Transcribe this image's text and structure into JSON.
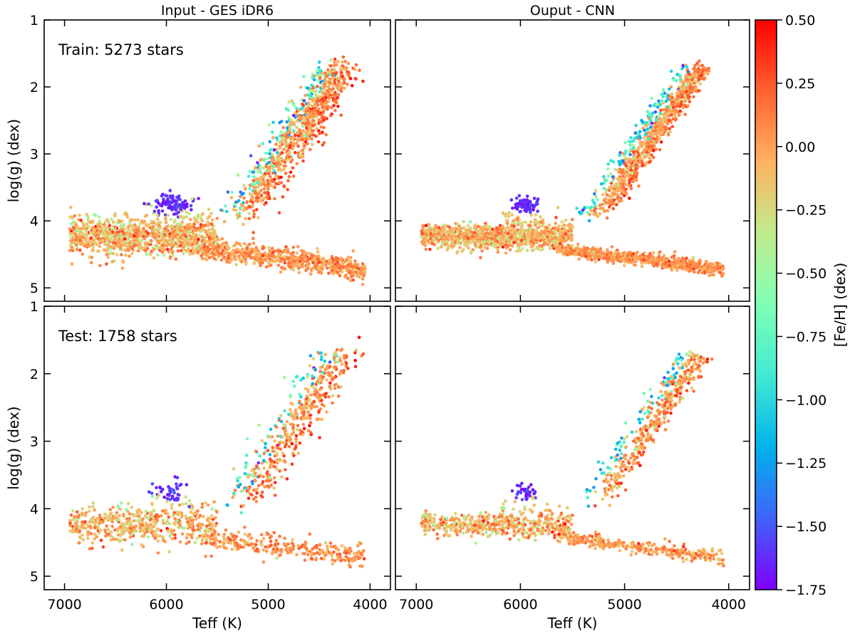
{
  "chart_data": [
    {
      "type": "scatter",
      "panel": "train-input",
      "title": "Input - GES iDR6",
      "annotation": "Train: 5273 stars",
      "xlabel": "",
      "ylabel": "log(g) (dex)",
      "xlim": [
        7200,
        3800
      ],
      "ylim": [
        1,
        5.2
      ],
      "xticks": [
        7000,
        6000,
        5000,
        4000
      ],
      "yticks": [
        1,
        2,
        3,
        4,
        5
      ],
      "tick_labels_x": [],
      "tick_labels_y": [
        "1",
        "2",
        "3",
        "4",
        "5"
      ],
      "n_stars": 5273,
      "color_variable": "[Fe/H] (dex)"
    },
    {
      "type": "scatter",
      "panel": "train-output",
      "title": "Ouput - CNN",
      "annotation": "",
      "xlabel": "",
      "ylabel": "",
      "xlim": [
        7200,
        3800
      ],
      "ylim": [
        1,
        5.2
      ],
      "xticks": [
        7000,
        6000,
        5000,
        4000
      ],
      "yticks": [
        1,
        2,
        3,
        4,
        5
      ],
      "tick_labels_x": [],
      "tick_labels_y": [],
      "n_stars": 5273,
      "color_variable": "[Fe/H] (dex)"
    },
    {
      "type": "scatter",
      "panel": "test-input",
      "title": "",
      "annotation": "Test: 1758 stars",
      "xlabel": "Teff (K)",
      "ylabel": "log(g) (dex)",
      "xlim": [
        7200,
        3800
      ],
      "ylim": [
        1,
        5.2
      ],
      "xticks": [
        7000,
        6000,
        5000,
        4000
      ],
      "yticks": [
        1,
        2,
        3,
        4,
        5
      ],
      "tick_labels_x": [
        "7000",
        "6000",
        "5000",
        "4000"
      ],
      "tick_labels_y": [
        "1",
        "2",
        "3",
        "4",
        "5"
      ],
      "n_stars": 1758,
      "color_variable": "[Fe/H] (dex)"
    },
    {
      "type": "scatter",
      "panel": "test-output",
      "title": "",
      "annotation": "",
      "xlabel": "Teff (K)",
      "ylabel": "",
      "xlim": [
        7200,
        3800
      ],
      "ylim": [
        1,
        5.2
      ],
      "xticks": [
        7000,
        6000,
        5000,
        4000
      ],
      "yticks": [
        1,
        2,
        3,
        4,
        5
      ],
      "tick_labels_x": [
        "7000",
        "6000",
        "5000",
        "4000"
      ],
      "tick_labels_y": [],
      "n_stars": 1758,
      "color_variable": "[Fe/H] (dex)"
    }
  ],
  "colorbar": {
    "label": "[Fe/H] (dex)",
    "range": [
      -1.75,
      0.5
    ],
    "ticks": [
      0.5,
      0.25,
      0.0,
      -0.25,
      -0.5,
      -0.75,
      -1.0,
      -1.25,
      -1.5,
      -1.75
    ],
    "tick_labels": [
      "0.50",
      "0.25",
      "0.00",
      "−0.25",
      "−0.50",
      "−0.75",
      "−1.00",
      "−1.25",
      "−1.50",
      "−1.75"
    ],
    "colormap": "rainbow",
    "colormap_stops": [
      "#8000ff",
      "#4062fa",
      "#01b3eb",
      "#41ead4",
      "#80ffb4",
      "#c0eb8d",
      "#ffb360",
      "#ff6230",
      "#ff0000"
    ]
  },
  "population_structure": {
    "dwarfs_and_turnoff": {
      "teff_range": [
        7000,
        5500
      ],
      "logg_range": [
        3.9,
        4.6
      ],
      "feh_typical": 0.0
    },
    "lower_main_sequence": {
      "teff_range": [
        5600,
        4050
      ],
      "logg_range": [
        4.3,
        4.85
      ],
      "feh_typical": 0.05
    },
    "red_giant_branch": {
      "teff_range": [
        5300,
        4150
      ],
      "logg_range": [
        1.5,
        4.0
      ],
      "feh_typical": 0.0
    },
    "metal_poor_clump": {
      "teff_center": 5950,
      "logg_center": 3.75,
      "feh_typical": -1.6
    },
    "metal_poor_giants": {
      "teff_range": [
        5200,
        4700
      ],
      "logg_range": [
        1.6,
        3.2
      ],
      "feh_typical": -1.2
    }
  }
}
